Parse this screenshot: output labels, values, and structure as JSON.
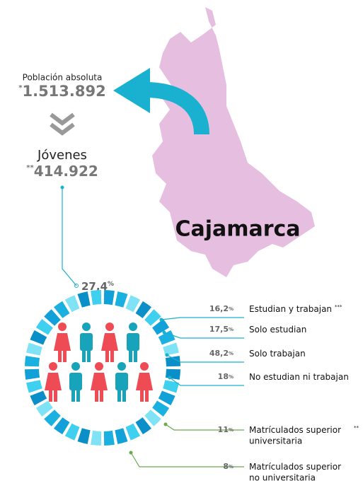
{
  "region": "Cajamarca",
  "population": {
    "label": "Población absoluta",
    "note": "*",
    "value": "1.513.892"
  },
  "youth": {
    "label": "Jóvenes",
    "note": "**",
    "value": "414.922",
    "share": "27,4",
    "unit": "%"
  },
  "stats": [
    {
      "value": "16,2",
      "unit": "%",
      "label": "Estudian y trabajan",
      "note": "***"
    },
    {
      "value": "17,5",
      "unit": "%",
      "label": "Solo estudian"
    },
    {
      "value": "48,2",
      "unit": "%",
      "label": "Solo trabajan"
    },
    {
      "value": "18",
      "unit": "%",
      "label": "No estudian ni trabajan"
    },
    {
      "value": "11",
      "unit": "%",
      "label": "Matrículados superior",
      "label2": "universitaria",
      "note": "**"
    },
    {
      "value": "8",
      "unit": "%",
      "label": "Matrículados superior",
      "label2": "no universitaria"
    }
  ]
}
